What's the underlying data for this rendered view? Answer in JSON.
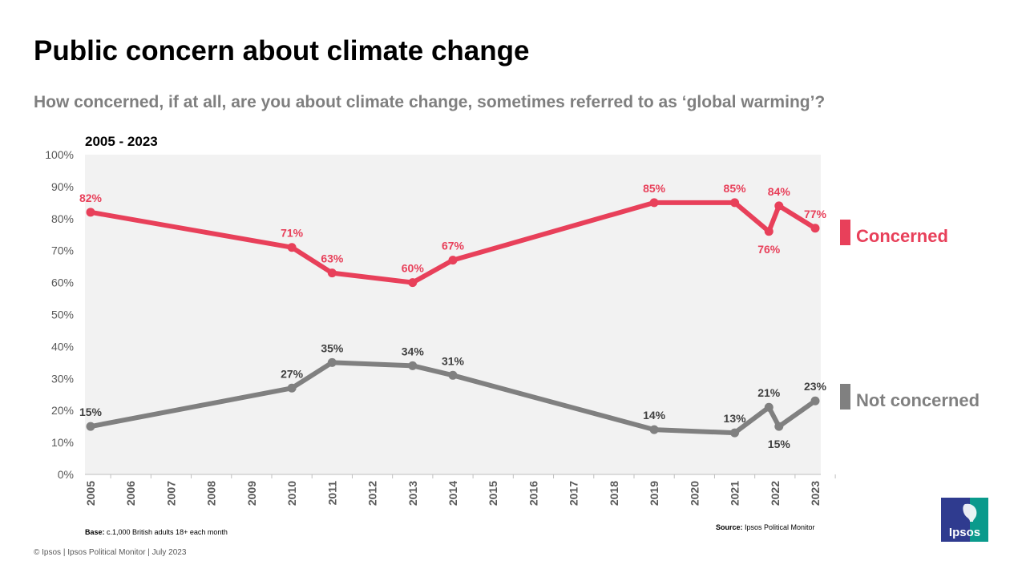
{
  "title": "Public concern about climate change",
  "subtitle": "How concerned, if at all, are you about climate change, sometimes referred to as ‘global warming’?",
  "range_label": "2005 - 2023",
  "legend": {
    "concerned": "Concerned",
    "not_concerned": "Not concerned"
  },
  "notes": {
    "base_label": "Base:",
    "base_text": " c.1,000 British adults 18+ each month",
    "source_label": "Source:",
    "source_text": " Ipsos Political Monitor"
  },
  "footer": "© Ipsos | Ipsos Political Monitor | July 2023",
  "logo_text": "Ipsos",
  "colors": {
    "concerned": "#e8405a",
    "not_concerned": "#808080",
    "plot_bg": "#f2f2f2",
    "axis": "#bfbfbf"
  },
  "chart_data": {
    "type": "line",
    "title": "Public concern about climate change",
    "xlabel": "",
    "ylabel": "",
    "xlim": [
      2005,
      2023
    ],
    "ylim": [
      0,
      100
    ],
    "x_ticks": [
      "2005",
      "2006",
      "2007",
      "2008",
      "2009",
      "2010",
      "2011",
      "2012",
      "2013",
      "2014",
      "2015",
      "2016",
      "2017",
      "2018",
      "2019",
      "2020",
      "2021",
      "2022",
      "2023"
    ],
    "y_ticks": [
      "0%",
      "10%",
      "20%",
      "30%",
      "40%",
      "50%",
      "60%",
      "70%",
      "80%",
      "90%",
      "100%"
    ],
    "grid": false,
    "legend_position": "right",
    "series": [
      {
        "name": "Concerned",
        "x": [
          2005,
          2010,
          2011,
          2013,
          2014,
          2019,
          2021,
          2021.85,
          2022.1,
          2023
        ],
        "values": [
          82,
          71,
          63,
          60,
          67,
          85,
          85,
          76,
          84,
          77
        ],
        "labels": [
          "82%",
          "71%",
          "63%",
          "60%",
          "67%",
          "85%",
          "85%",
          "76%",
          "84%",
          "77%"
        ],
        "label_pos": [
          "above",
          "above",
          "above",
          "above",
          "above",
          "above",
          "above",
          "below",
          "above",
          "above"
        ]
      },
      {
        "name": "Not concerned",
        "x": [
          2005,
          2010,
          2011,
          2013,
          2014,
          2019,
          2021,
          2021.85,
          2022.1,
          2023
        ],
        "values": [
          15,
          27,
          35,
          34,
          31,
          14,
          13,
          21,
          15,
          23
        ],
        "labels": [
          "15%",
          "27%",
          "35%",
          "34%",
          "31%",
          "14%",
          "13%",
          "21%",
          "15%",
          "23%"
        ],
        "label_pos": [
          "above",
          "above",
          "above",
          "above",
          "above",
          "above",
          "above",
          "above",
          "below",
          "above"
        ]
      }
    ]
  }
}
